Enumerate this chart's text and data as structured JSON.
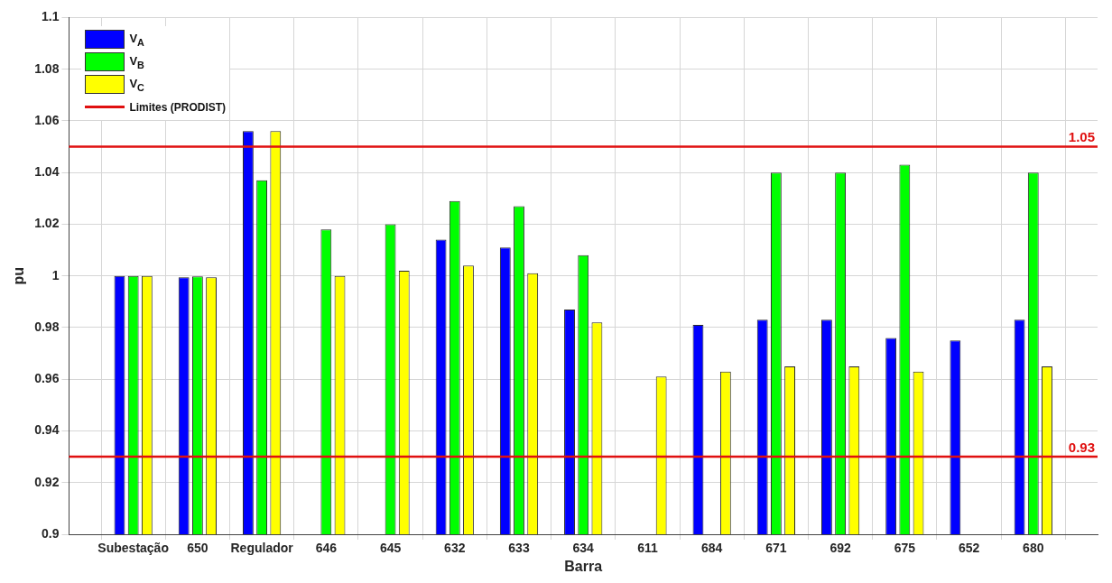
{
  "chart_data": {
    "type": "bar",
    "xlabel": "Barra",
    "ylabel": "pu",
    "categories": [
      "Subestação",
      "650",
      "Regulador",
      "646",
      "645",
      "632",
      "633",
      "634",
      "611",
      "684",
      "671",
      "692",
      "675",
      "652",
      "680"
    ],
    "series": [
      {
        "name": "V$_{A}$",
        "color": "#0000ff",
        "values": [
          1.0,
          0.9995,
          1.056,
          null,
          null,
          1.014,
          1.011,
          0.987,
          null,
          0.981,
          0.983,
          0.983,
          0.976,
          0.975,
          0.983
        ]
      },
      {
        "name": "V$_{B}$",
        "color": "#00ff00",
        "values": [
          1.0,
          0.9998,
          1.037,
          1.018,
          1.02,
          1.029,
          1.027,
          1.008,
          null,
          null,
          1.04,
          1.04,
          1.043,
          null,
          1.04
        ]
      },
      {
        "name": "V$_{C}$",
        "color": "#ffff00",
        "values": [
          1.0,
          0.9995,
          1.056,
          1.0,
          1.002,
          1.004,
          1.001,
          0.982,
          0.961,
          0.963,
          0.965,
          0.965,
          0.963,
          null,
          0.965
        ]
      }
    ],
    "ylim": [
      0.9,
      1.1
    ],
    "yticks": [
      0.9,
      0.92,
      0.94,
      0.96,
      0.98,
      1,
      1.02,
      1.04,
      1.06,
      1.08,
      1.1
    ],
    "ref_lines": [
      {
        "axis": "y",
        "value": 1.05,
        "label": "1.05",
        "color": "#e01010"
      },
      {
        "axis": "y",
        "value": 0.93,
        "label": "0.93",
        "color": "#e01010"
      }
    ],
    "annotations": [
      "Limites (PRODIST)"
    ],
    "grid": true,
    "legend": "top left"
  }
}
